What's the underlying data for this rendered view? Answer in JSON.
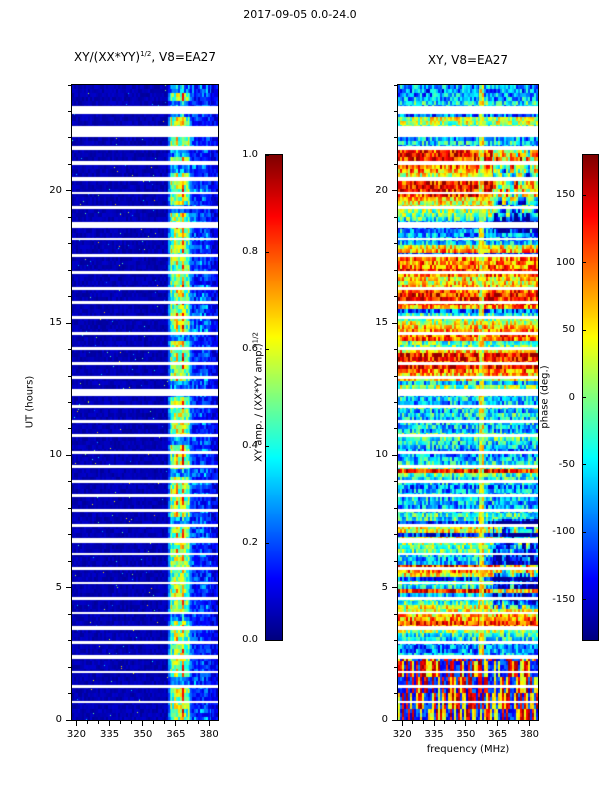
{
  "figure": {
    "title": "2017-09-05 0.0-24.0"
  },
  "time_gaps_ut": [
    [
      23.05,
      0.3
    ],
    [
      22.25,
      0.4
    ],
    [
      21.62,
      0.12
    ],
    [
      21.05,
      0.12
    ],
    [
      20.45,
      0.18
    ],
    [
      19.92,
      0.1
    ],
    [
      19.38,
      0.12
    ],
    [
      18.72,
      0.22
    ],
    [
      18.18,
      0.1
    ],
    [
      17.55,
      0.12
    ],
    [
      16.92,
      0.1
    ],
    [
      16.32,
      0.12
    ],
    [
      15.78,
      0.1
    ],
    [
      15.22,
      0.12
    ],
    [
      14.62,
      0.1
    ],
    [
      14.05,
      0.12
    ],
    [
      13.48,
      0.1
    ],
    [
      12.95,
      0.12
    ],
    [
      12.38,
      0.28
    ],
    [
      11.85,
      0.1
    ],
    [
      11.28,
      0.12
    ],
    [
      10.75,
      0.1
    ],
    [
      10.12,
      0.12
    ],
    [
      9.58,
      0.1
    ],
    [
      9.02,
      0.12
    ],
    [
      8.48,
      0.1
    ],
    [
      7.92,
      0.12
    ],
    [
      7.35,
      0.1
    ],
    [
      6.78,
      0.18
    ],
    [
      6.28,
      0.1
    ],
    [
      5.72,
      0.12
    ],
    [
      5.18,
      0.1
    ],
    [
      4.58,
      0.12
    ],
    [
      4.05,
      0.1
    ],
    [
      3.48,
      0.12
    ],
    [
      2.92,
      0.1
    ],
    [
      2.38,
      0.12
    ],
    [
      1.82,
      0.1
    ],
    [
      1.28,
      0.12
    ],
    [
      0.68,
      0.1
    ]
  ],
  "chart_data": [
    {
      "type": "heatmap",
      "mode": "coherence",
      "title_base": "XY/(XX*YY)",
      "title_sup": "1/2",
      "title_rest": ", V8=EA27",
      "xlabel": "",
      "ylabel": "UT (hours)",
      "xlim": [
        318,
        384
      ],
      "ylim": [
        0,
        24
      ],
      "xticks": [
        320,
        335,
        350,
        365,
        380
      ],
      "x_minor_step": 5,
      "yticks": [
        0,
        5,
        10,
        15,
        20
      ],
      "y_minor_step": 1,
      "colormap": "jet",
      "background_value": 0.04,
      "bands": [
        {
          "fmin": 361.5,
          "fmax": 372.2,
          "vmin": 0.45,
          "vmax": 1.0,
          "note": "strong coherence band, blocky red/yellow segments"
        },
        {
          "fmin": 372.2,
          "fmax": 381.0,
          "vmin": 0.08,
          "vmax": 0.45,
          "note": "moderate coherence band, cyan/green streaks"
        },
        {
          "fmin": 381.0,
          "fmax": 384.0,
          "vmin": 0.04,
          "vmax": 0.18,
          "note": "weak edge band"
        }
      ],
      "colorbar": {
        "label_base": "XY amp. / (XX*YY amp.)",
        "label_sup": "1/2",
        "min": 0.0,
        "max": 1.0,
        "tick_labels": [
          "0.0",
          "0.2",
          "0.4",
          "0.6",
          "0.8",
          "1.0"
        ],
        "tick_values": [
          0,
          0.2,
          0.4,
          0.6,
          0.8,
          1.0
        ]
      }
    },
    {
      "type": "heatmap",
      "mode": "phase",
      "title_base": "XY, V8=EA27",
      "title_sup": "",
      "title_rest": "",
      "xlabel": "frequency (MHz)",
      "ylabel": "",
      "xlim": [
        318,
        384
      ],
      "ylim": [
        0,
        24
      ],
      "xticks": [
        320,
        335,
        350,
        365,
        380
      ],
      "x_minor_step": 5,
      "yticks": [
        0,
        5,
        10,
        15,
        20
      ],
      "y_minor_step": 1,
      "colormap": "jet",
      "features": {
        "checker_below_t": 2.3,
        "blue_patch_regions": [
          {
            "t0": 4.2,
            "t1": 7.6,
            "fmin": 363
          },
          {
            "t0": 18.4,
            "t1": 21.6,
            "fmin": 363
          }
        ],
        "bright_column": {
          "fmin": 356.0,
          "fmax": 358.5
        }
      },
      "colorbar": {
        "label": "phase (deg.)",
        "min": -180,
        "max": 180,
        "tick_labels": [
          "-150",
          "-100",
          "-50",
          "0",
          "50",
          "100",
          "150"
        ],
        "tick_values": [
          -150,
          -100,
          -50,
          0,
          50,
          100,
          150
        ]
      }
    }
  ]
}
